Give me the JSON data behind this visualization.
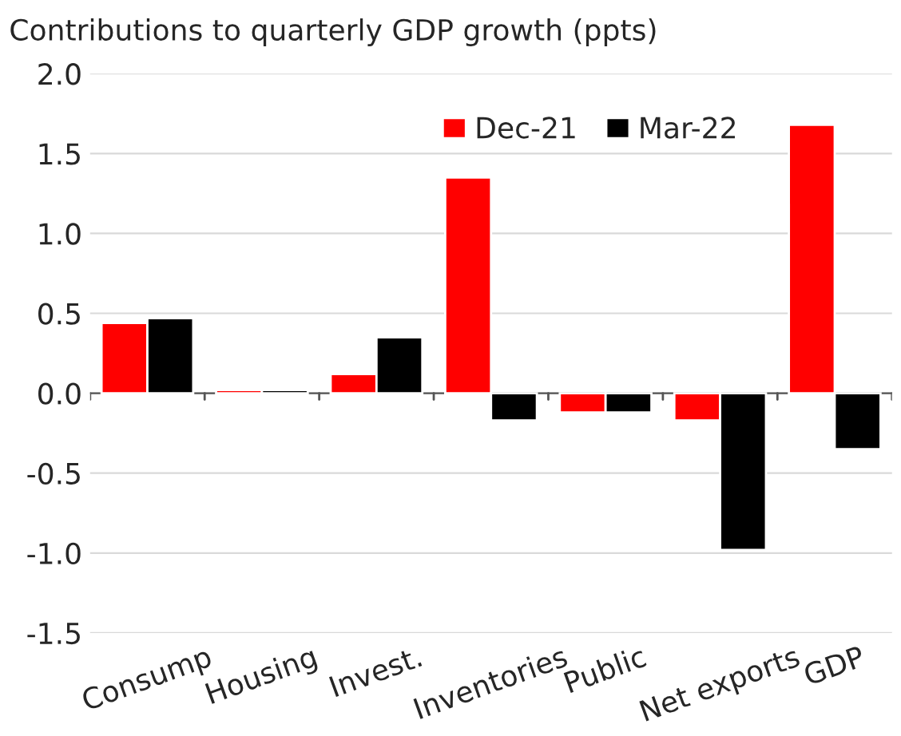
{
  "chart_data": {
    "type": "bar",
    "title": "Contributions to quarterly GDP growth (ppts)",
    "categories": [
      "Consump",
      "Housing",
      "Invest.",
      "Inventories",
      "Public",
      "Net exports",
      "GDP"
    ],
    "series": [
      {
        "name": "Dec-21",
        "color": "#ff0000",
        "values": [
          0.44,
          0.02,
          0.12,
          1.35,
          -0.12,
          -0.17,
          1.68
        ]
      },
      {
        "name": "Mar-22",
        "color": "#000000",
        "values": [
          0.47,
          0.02,
          0.35,
          -0.17,
          -0.12,
          -0.98,
          -0.35
        ]
      }
    ],
    "ylim": [
      -1.5,
      2.0
    ],
    "yticks": [
      {
        "value": -1.5,
        "label": "-1.5"
      },
      {
        "value": -1.0,
        "label": "-1.0"
      },
      {
        "value": -0.5,
        "label": "-0.5"
      },
      {
        "value": 0.0,
        "label": "0.0"
      },
      {
        "value": 0.5,
        "label": "0.5"
      },
      {
        "value": 1.0,
        "label": "1.0"
      },
      {
        "value": 1.5,
        "label": "1.5"
      },
      {
        "value": 2.0,
        "label": "2.0"
      }
    ],
    "grid": "y",
    "legend": "top right"
  }
}
